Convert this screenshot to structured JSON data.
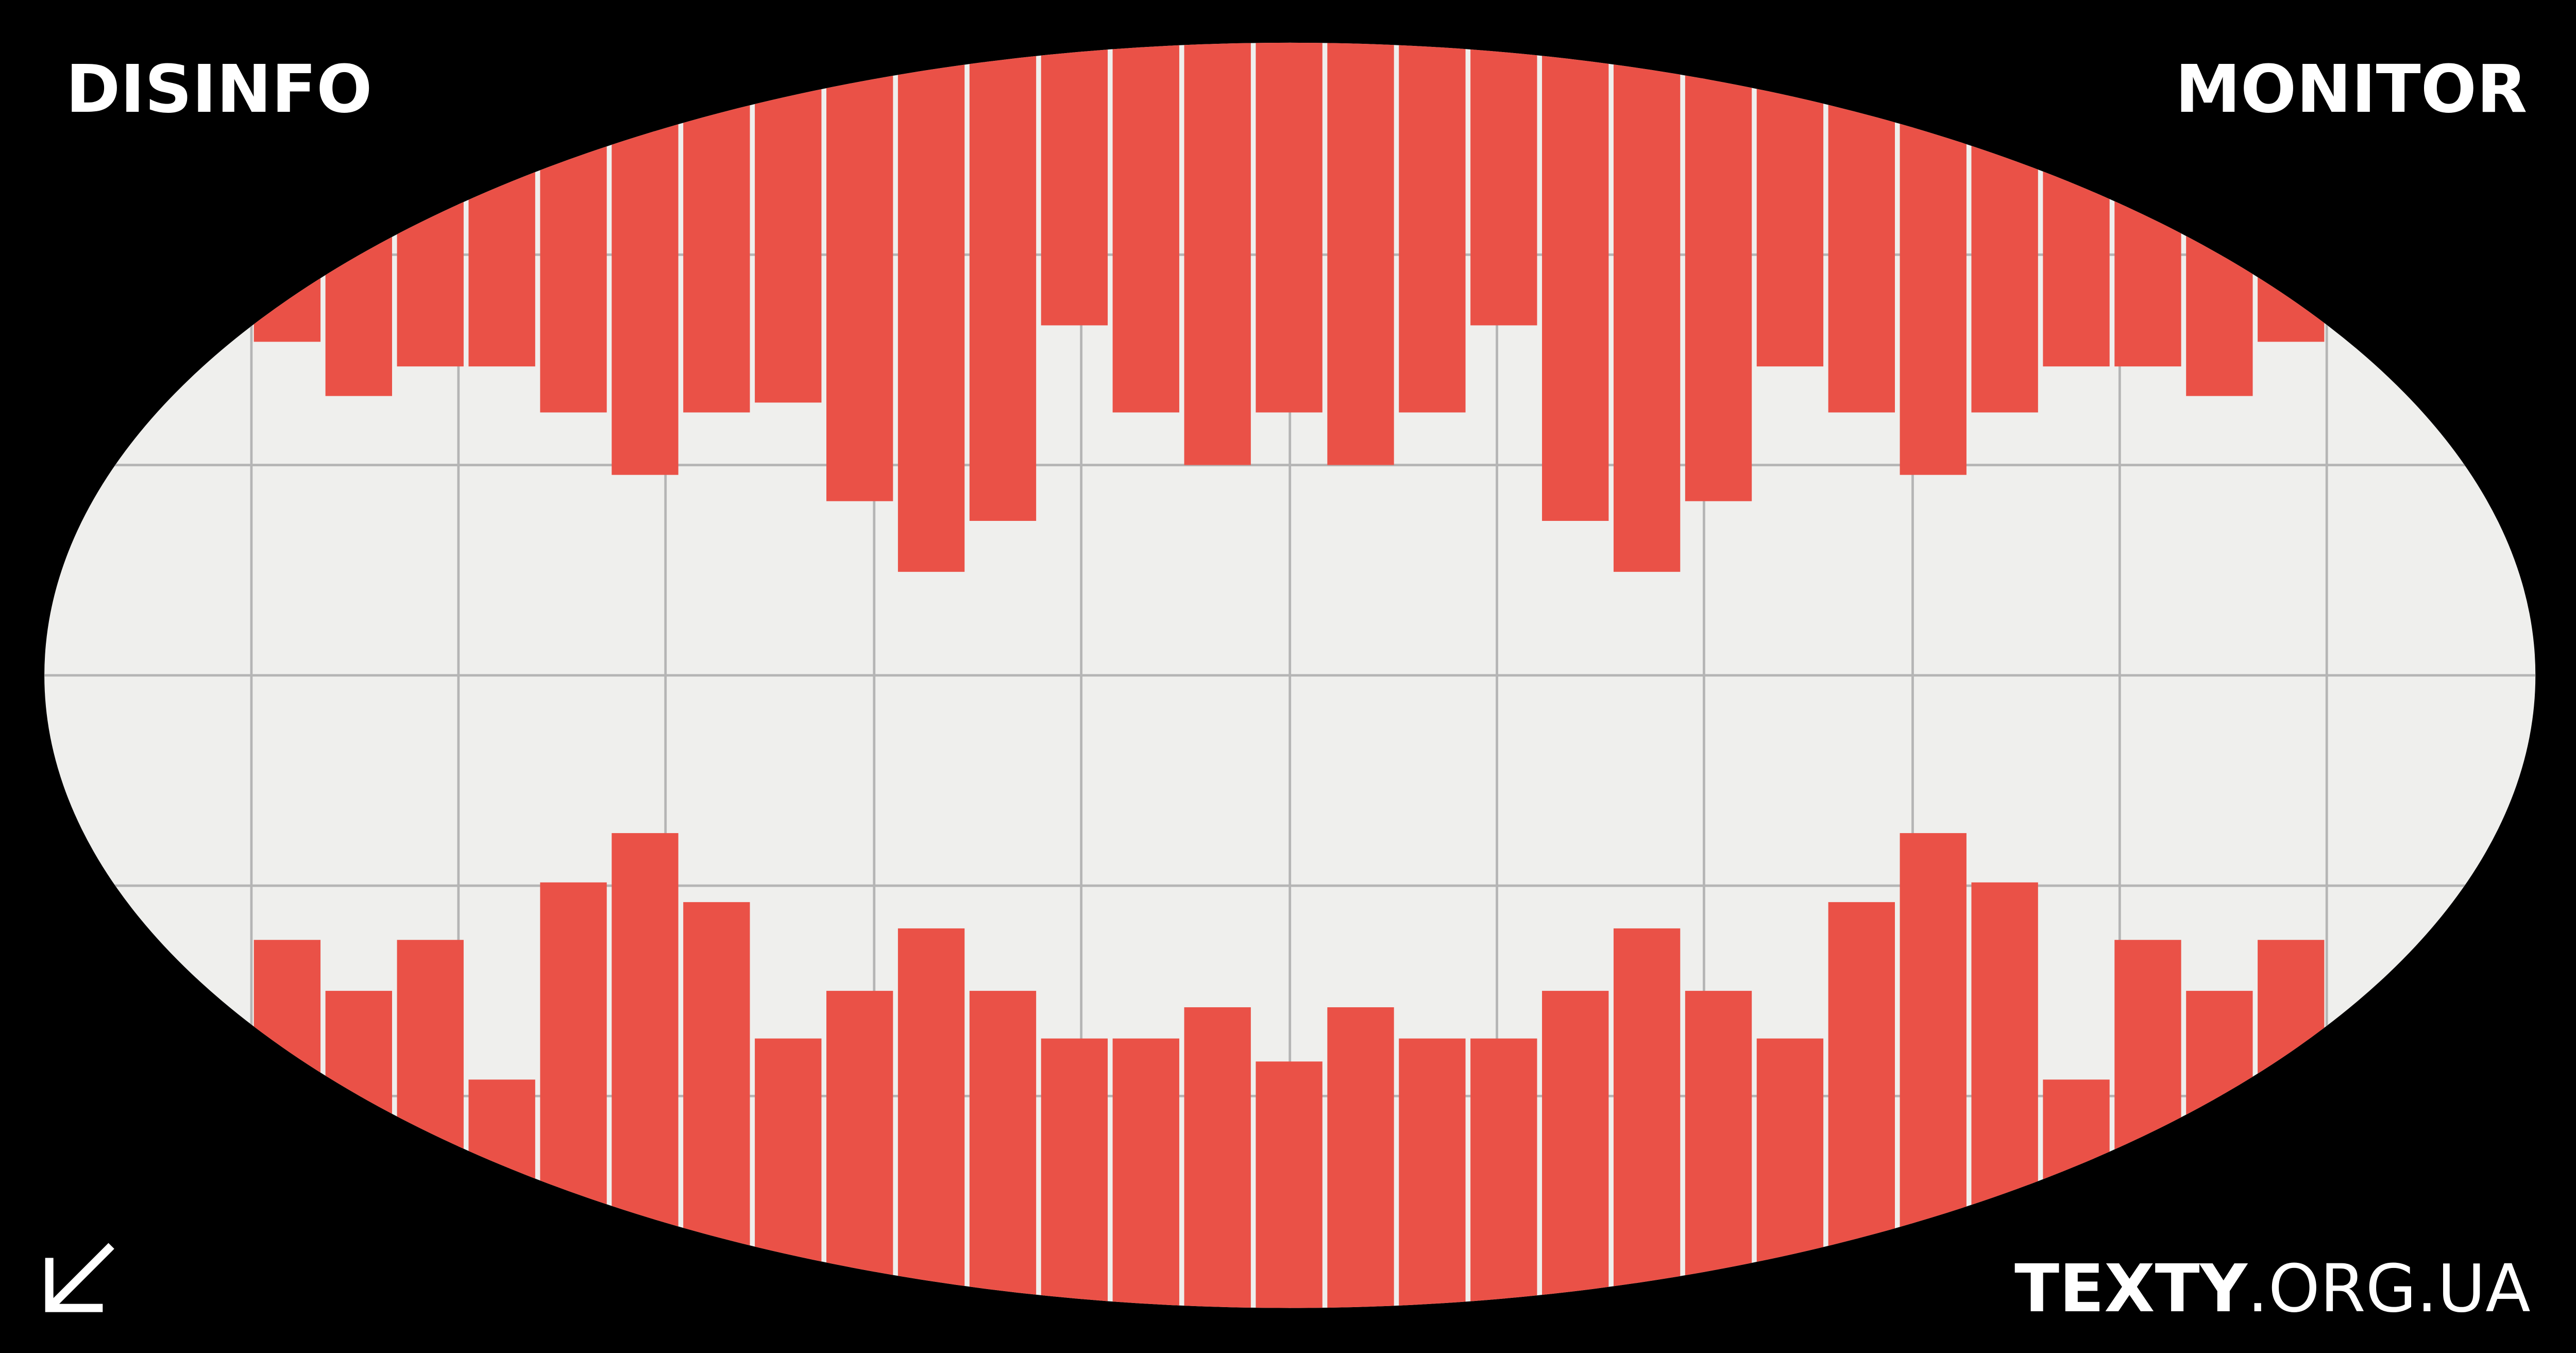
{
  "header": {
    "left": "DISINFO",
    "right": "MONITOR"
  },
  "footer": {
    "brand": "TEXTY",
    "domain": ".ORG.UA"
  }
}
